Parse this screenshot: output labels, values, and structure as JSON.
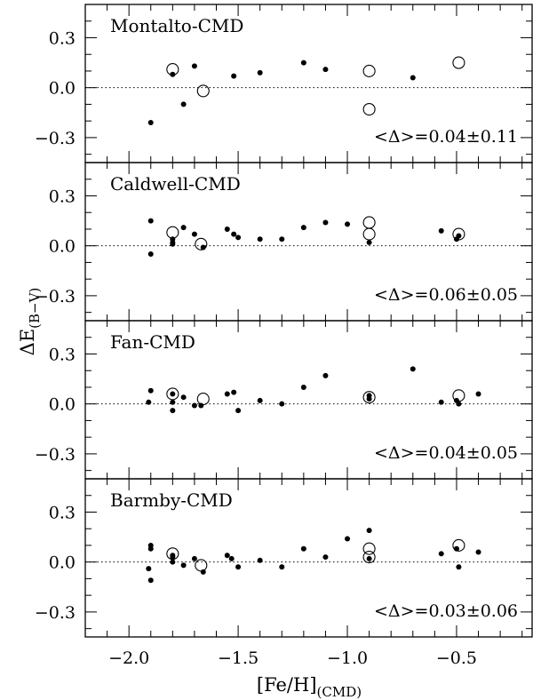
{
  "figure": {
    "xlabel": "[Fe/H]",
    "xlabel_sub": "(CMD)",
    "ylabel": "ΔE",
    "ylabel_sub": "(B−V)"
  },
  "chart_data": [
    {
      "type": "scatter",
      "title": "Montalto-CMD",
      "annotation": "<Δ>=0.04±0.11",
      "xlim": [
        -2.2,
        -0.15
      ],
      "ylim": [
        -0.45,
        0.5
      ],
      "x_ticks": [
        "−2.0",
        "−1.5",
        "−1.0",
        "−0.5"
      ],
      "y_ticks": [
        "0.3",
        "0.0",
        "−0.3"
      ],
      "series": [
        {
          "marker": "filled-dot",
          "points": [
            [
              -1.9,
              -0.21
            ],
            [
              -1.8,
              0.08
            ],
            [
              -1.75,
              -0.1
            ],
            [
              -1.7,
              0.13
            ],
            [
              -1.52,
              0.07
            ],
            [
              -1.4,
              0.09
            ],
            [
              -1.2,
              0.15
            ],
            [
              -1.1,
              0.11
            ],
            [
              -0.7,
              0.06
            ]
          ]
        },
        {
          "marker": "open-circle",
          "points": [
            [
              -1.8,
              0.11
            ],
            [
              -1.66,
              -0.02
            ],
            [
              -0.9,
              0.1
            ],
            [
              -0.9,
              -0.13
            ],
            [
              -0.49,
              0.15
            ]
          ]
        }
      ]
    },
    {
      "type": "scatter",
      "title": "Caldwell-CMD",
      "annotation": "<Δ>=0.06±0.05",
      "xlim": [
        -2.2,
        -0.15
      ],
      "ylim": [
        -0.45,
        0.5
      ],
      "x_ticks": [
        "−2.0",
        "−1.5",
        "−1.0",
        "−0.5"
      ],
      "y_ticks": [
        "0.3",
        "0.0",
        "−0.3"
      ],
      "series": [
        {
          "marker": "filled-dot",
          "points": [
            [
              -1.9,
              0.15
            ],
            [
              -1.9,
              -0.05
            ],
            [
              -1.8,
              0.04
            ],
            [
              -1.8,
              0.02
            ],
            [
              -1.8,
              0.01
            ],
            [
              -1.75,
              0.11
            ],
            [
              -1.7,
              0.07
            ],
            [
              -1.66,
              -0.01
            ],
            [
              -1.55,
              0.1
            ],
            [
              -1.52,
              0.07
            ],
            [
              -1.5,
              0.05
            ],
            [
              -1.4,
              0.04
            ],
            [
              -1.3,
              0.04
            ],
            [
              -1.2,
              0.11
            ],
            [
              -1.1,
              0.14
            ],
            [
              -1.0,
              0.13
            ],
            [
              -0.9,
              0.02
            ],
            [
              -0.57,
              0.09
            ],
            [
              -0.5,
              0.04
            ],
            [
              -0.49,
              0.06
            ]
          ]
        },
        {
          "marker": "open-circle",
          "points": [
            [
              -1.8,
              0.08
            ],
            [
              -1.67,
              0.01
            ],
            [
              -0.9,
              0.14
            ],
            [
              -0.9,
              0.07
            ],
            [
              -0.49,
              0.07
            ]
          ]
        }
      ]
    },
    {
      "type": "scatter",
      "title": "Fan-CMD",
      "annotation": "<Δ>=0.04±0.05",
      "xlim": [
        -2.2,
        -0.15
      ],
      "ylim": [
        -0.45,
        0.5
      ],
      "x_ticks": [
        "−2.0",
        "−1.5",
        "−1.0",
        "−0.5"
      ],
      "y_ticks": [
        "0.3",
        "0.0",
        "−0.3"
      ],
      "series": [
        {
          "marker": "filled-dot",
          "points": [
            [
              -1.9,
              0.08
            ],
            [
              -1.91,
              0.01
            ],
            [
              -1.8,
              0.06
            ],
            [
              -1.8,
              0.01
            ],
            [
              -1.8,
              -0.04
            ],
            [
              -1.75,
              0.04
            ],
            [
              -1.7,
              -0.01
            ],
            [
              -1.67,
              -0.01
            ],
            [
              -1.55,
              0.06
            ],
            [
              -1.52,
              0.07
            ],
            [
              -1.5,
              -0.04
            ],
            [
              -1.4,
              0.02
            ],
            [
              -1.3,
              0.0
            ],
            [
              -1.2,
              0.1
            ],
            [
              -1.1,
              0.17
            ],
            [
              -0.9,
              0.05
            ],
            [
              -0.9,
              0.03
            ],
            [
              -0.7,
              0.21
            ],
            [
              -0.57,
              0.01
            ],
            [
              -0.5,
              0.02
            ],
            [
              -0.49,
              0.0
            ],
            [
              -0.4,
              0.06
            ]
          ]
        },
        {
          "marker": "open-circle",
          "points": [
            [
              -1.8,
              0.06
            ],
            [
              -1.66,
              0.03
            ],
            [
              -0.9,
              0.04
            ],
            [
              -0.49,
              0.05
            ]
          ]
        }
      ]
    },
    {
      "type": "scatter",
      "title": "Barmby-CMD",
      "annotation": "<Δ>=0.03±0.06",
      "xlim": [
        -2.2,
        -0.15
      ],
      "ylim": [
        -0.45,
        0.5
      ],
      "x_ticks": [
        "−2.0",
        "−1.5",
        "−1.0",
        "−0.5"
      ],
      "y_ticks": [
        "0.3",
        "0.0",
        "−0.3"
      ],
      "series": [
        {
          "marker": "filled-dot",
          "points": [
            [
              -1.9,
              0.1
            ],
            [
              -1.9,
              0.08
            ],
            [
              -1.91,
              -0.04
            ],
            [
              -1.9,
              -0.11
            ],
            [
              -1.8,
              0.04
            ],
            [
              -1.8,
              0.03
            ],
            [
              -1.8,
              0.0
            ],
            [
              -1.75,
              -0.02
            ],
            [
              -1.7,
              0.02
            ],
            [
              -1.66,
              -0.06
            ],
            [
              -1.55,
              0.04
            ],
            [
              -1.53,
              0.02
            ],
            [
              -1.5,
              -0.03
            ],
            [
              -1.4,
              0.01
            ],
            [
              -1.3,
              -0.03
            ],
            [
              -1.2,
              0.08
            ],
            [
              -1.1,
              0.03
            ],
            [
              -1.0,
              0.14
            ],
            [
              -0.9,
              0.19
            ],
            [
              -0.9,
              0.02
            ],
            [
              -0.57,
              0.05
            ],
            [
              -0.5,
              0.08
            ],
            [
              -0.49,
              -0.03
            ],
            [
              -0.4,
              0.06
            ]
          ]
        },
        {
          "marker": "open-circle",
          "points": [
            [
              -1.8,
              0.05
            ],
            [
              -1.67,
              -0.02
            ],
            [
              -0.9,
              0.08
            ],
            [
              -0.9,
              0.03
            ],
            [
              -0.49,
              0.1
            ]
          ]
        }
      ]
    }
  ]
}
